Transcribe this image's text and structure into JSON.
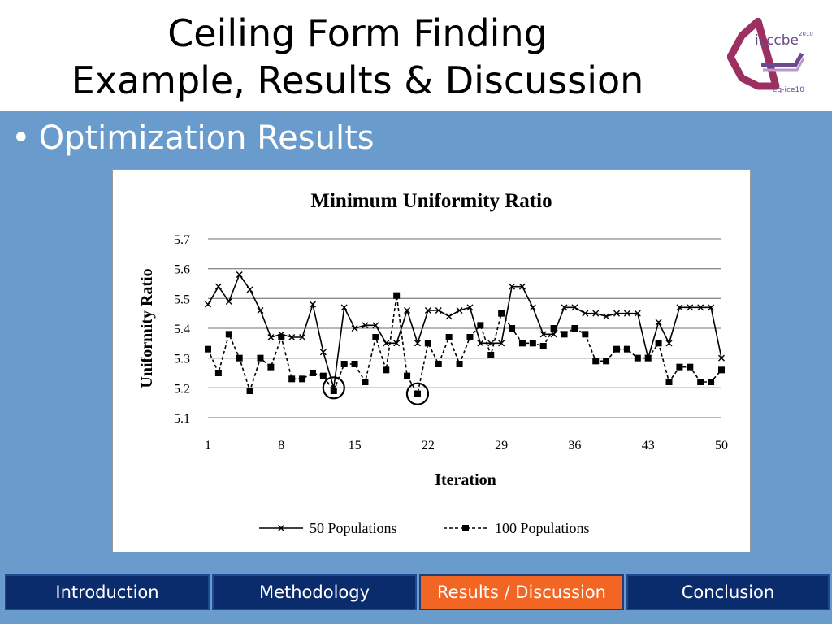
{
  "slide": {
    "title_line1": "Ceiling Form Finding",
    "title_line2": "Example, Results & Discussion",
    "bullet": "Optimization Results"
  },
  "logo": {
    "name": "icccbe",
    "year": "2010",
    "sub": "eg-ice10"
  },
  "nav": {
    "items": [
      {
        "label": "Introduction",
        "active": false
      },
      {
        "label": "Methodology",
        "active": false
      },
      {
        "label": "Results / Discussion",
        "active": true
      },
      {
        "label": "Conclusion",
        "active": false
      }
    ]
  },
  "colors": {
    "header_bg": "#ffffff",
    "main_bg": "#6a9bcd",
    "nav_bg": "#0b2c6c",
    "nav_active_bg": "#f26522",
    "logo_accent": "#6a4a8c"
  },
  "chart_data": {
    "type": "line",
    "title": "Minimum Uniformity Ratio",
    "xlabel": "Iteration",
    "ylabel": "Uniformity Ratio",
    "xlim": [
      1,
      50
    ],
    "ylim": [
      5.1,
      5.7
    ],
    "x_ticks": [
      "1",
      "8",
      "15",
      "22",
      "29",
      "36",
      "43",
      "50"
    ],
    "y_ticks": [
      "5.1",
      "5.2",
      "5.3",
      "5.4",
      "5.5",
      "5.6",
      "5.7"
    ],
    "grid": true,
    "legend_position": "bottom",
    "annotations": [
      {
        "type": "circle",
        "x": 13,
        "y": 5.2
      },
      {
        "type": "circle",
        "x": 21,
        "y": 5.18
      }
    ],
    "series": [
      {
        "name": "50 Populations",
        "marker": "x",
        "line": "solid",
        "x": [
          1,
          2,
          3,
          4,
          5,
          6,
          7,
          8,
          9,
          10,
          11,
          12,
          13,
          14,
          15,
          16,
          17,
          18,
          19,
          20,
          21,
          22,
          23,
          24,
          25,
          26,
          27,
          28,
          29,
          30,
          31,
          32,
          33,
          34,
          35,
          36,
          37,
          38,
          39,
          40,
          41,
          42,
          43,
          44,
          45,
          46,
          47,
          48,
          49,
          50
        ],
        "values": [
          5.48,
          5.54,
          5.49,
          5.58,
          5.53,
          5.46,
          5.37,
          5.38,
          5.37,
          5.37,
          5.48,
          5.32,
          5.2,
          5.47,
          5.4,
          5.41,
          5.41,
          5.35,
          5.35,
          5.46,
          5.35,
          5.46,
          5.46,
          5.44,
          5.46,
          5.47,
          5.35,
          5.35,
          5.35,
          5.54,
          5.54,
          5.47,
          5.38,
          5.38,
          5.47,
          5.47,
          5.45,
          5.45,
          5.44,
          5.45,
          5.45,
          5.45,
          5.3,
          5.42,
          5.35,
          5.47,
          5.47,
          5.47,
          5.47,
          5.3
        ]
      },
      {
        "name": "100 Populations",
        "marker": "square",
        "line": "dashed",
        "x": [
          1,
          2,
          3,
          4,
          5,
          6,
          7,
          8,
          9,
          10,
          11,
          12,
          13,
          14,
          15,
          16,
          17,
          18,
          19,
          20,
          21,
          22,
          23,
          24,
          25,
          26,
          27,
          28,
          29,
          30,
          31,
          32,
          33,
          34,
          35,
          36,
          37,
          38,
          39,
          40,
          41,
          42,
          43,
          44,
          45,
          46,
          47,
          48,
          49,
          50
        ],
        "values": [
          5.33,
          5.25,
          5.38,
          5.3,
          5.19,
          5.3,
          5.27,
          5.37,
          5.23,
          5.23,
          5.25,
          5.24,
          5.19,
          5.28,
          5.28,
          5.22,
          5.37,
          5.26,
          5.51,
          5.24,
          5.18,
          5.35,
          5.28,
          5.37,
          5.28,
          5.37,
          5.41,
          5.31,
          5.45,
          5.4,
          5.35,
          5.35,
          5.34,
          5.4,
          5.38,
          5.4,
          5.38,
          5.29,
          5.29,
          5.33,
          5.33,
          5.3,
          5.3,
          5.35,
          5.22,
          5.27,
          5.27,
          5.22,
          5.22,
          5.26
        ]
      }
    ]
  }
}
